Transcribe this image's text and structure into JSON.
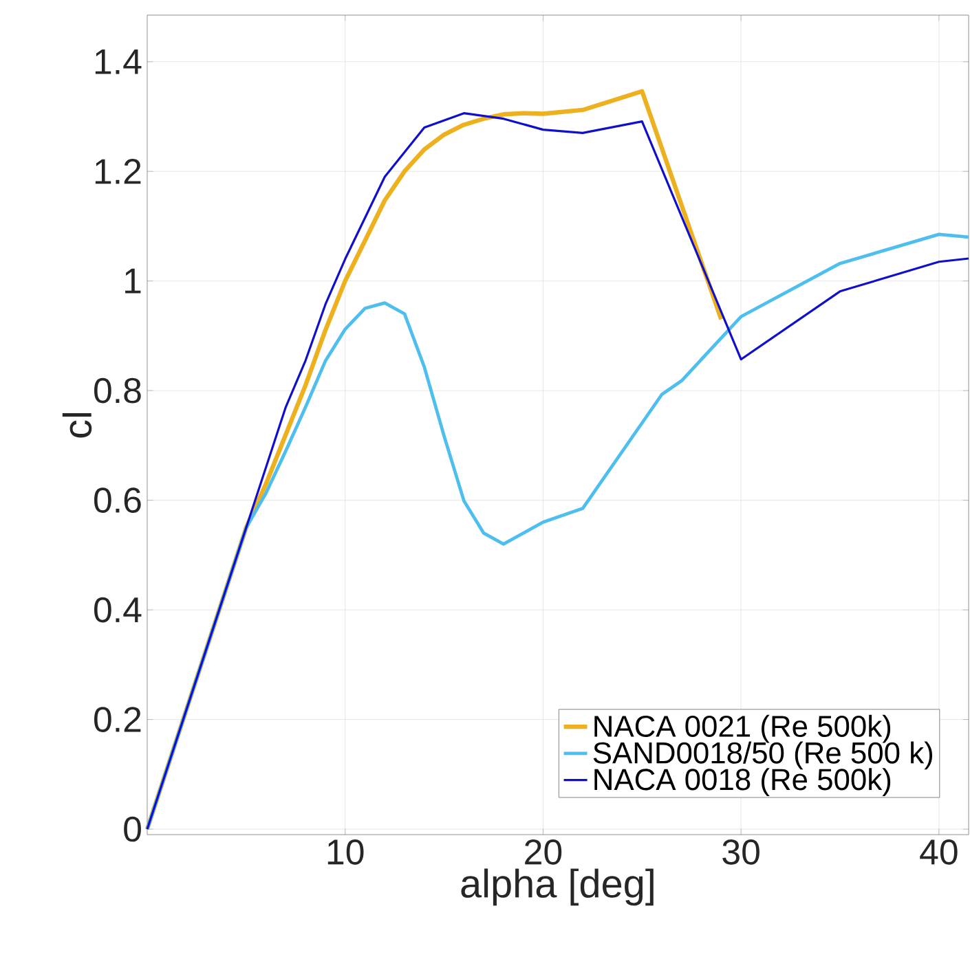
{
  "chart_data": {
    "type": "line",
    "xlabel": "alpha [deg]",
    "ylabel": "cl",
    "xlim": [
      0,
      41.5
    ],
    "ylim": [
      -0.01,
      1.485
    ],
    "xticks": [
      10,
      20,
      30,
      40
    ],
    "yticks": [
      0,
      0.2,
      0.4,
      0.6,
      0.8,
      1,
      1.2,
      1.4
    ],
    "grid": true,
    "legend": "bottom right",
    "series": [
      {
        "name": "NACA 0021 (Re 500k)",
        "color": "#EDB120",
        "x": [
          0,
          5,
          6,
          7,
          8,
          9,
          10,
          12,
          13,
          14,
          15,
          16,
          17,
          18,
          19,
          20,
          22,
          25,
          29
        ],
        "values": [
          0,
          0.55,
          0.63,
          0.72,
          0.81,
          0.91,
          1.0,
          1.147,
          1.2,
          1.24,
          1.267,
          1.285,
          1.296,
          1.304,
          1.306,
          1.305,
          1.312,
          1.346,
          0.93
        ]
      },
      {
        "name": "SAND0018/50 (Re 500 k)",
        "color": "#4DBEEE",
        "x": [
          0,
          5,
          6,
          7,
          8,
          9,
          10,
          11,
          12,
          13,
          14,
          15,
          16,
          17,
          18,
          20,
          22,
          26,
          27,
          30,
          35,
          40,
          41.5
        ],
        "values": [
          0,
          0.55,
          0.613,
          0.69,
          0.77,
          0.854,
          0.912,
          0.95,
          0.96,
          0.94,
          0.843,
          0.717,
          0.599,
          0.54,
          0.52,
          0.56,
          0.585,
          0.793,
          0.818,
          0.935,
          1.032,
          1.085,
          1.08
        ]
      },
      {
        "name": "NACA 0018 (Re 500k)",
        "color": "#1010CC",
        "x": [
          0,
          5,
          6,
          7,
          8,
          9,
          10,
          12,
          14,
          16,
          18,
          20,
          22,
          25,
          30,
          35,
          40,
          41.5
        ],
        "values": [
          0,
          0.55,
          0.66,
          0.77,
          0.855,
          0.957,
          1.04,
          1.19,
          1.28,
          1.306,
          1.296,
          1.276,
          1.27,
          1.291,
          0.857,
          0.981,
          1.035,
          1.041
        ]
      }
    ]
  }
}
